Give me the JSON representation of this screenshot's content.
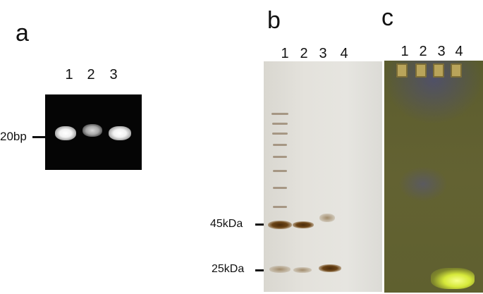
{
  "panels": {
    "a": {
      "letter": "a",
      "lanes": [
        "1",
        "2",
        "3"
      ],
      "marker": "20bp"
    },
    "b": {
      "letter": "b",
      "lanes": [
        "1",
        "2",
        "3",
        "4"
      ],
      "markers": [
        "45kDa",
        "25kDa"
      ]
    },
    "c": {
      "letter": "c",
      "lanes": [
        "1",
        "2",
        "3",
        "4"
      ]
    }
  }
}
